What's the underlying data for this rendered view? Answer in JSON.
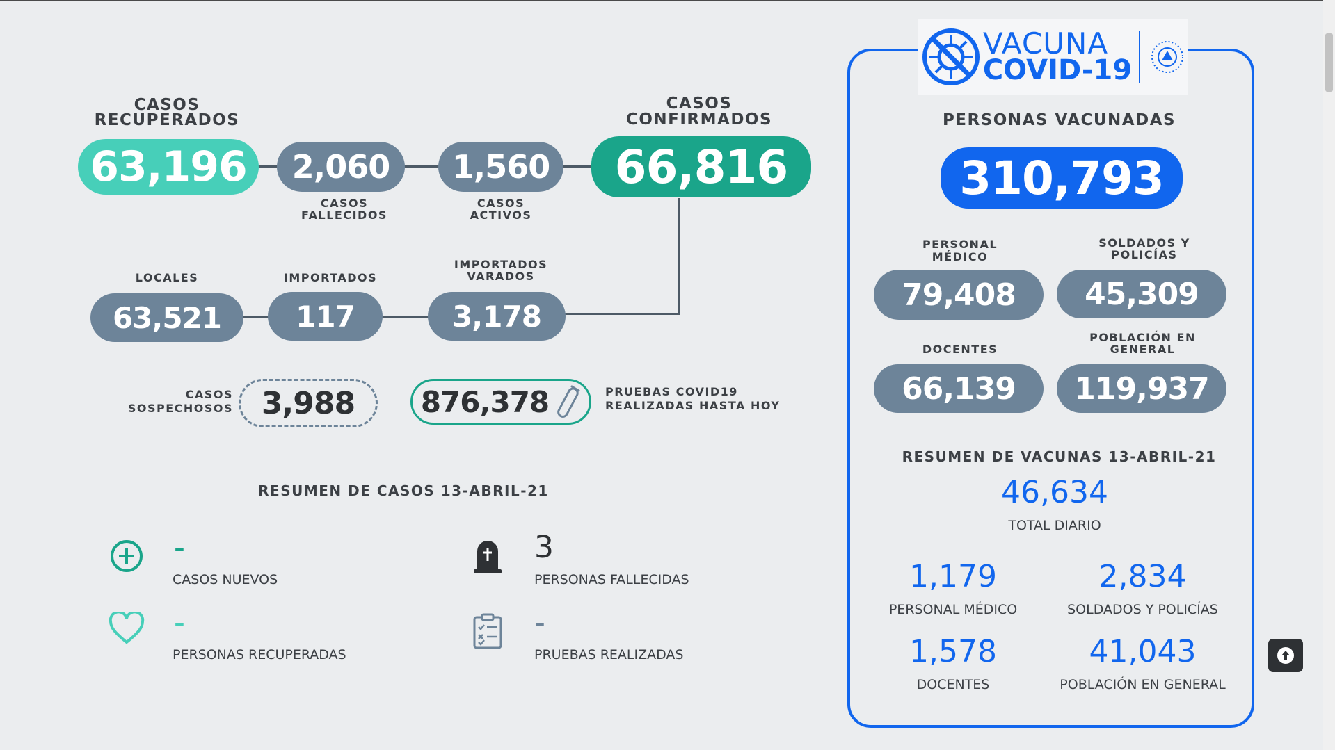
{
  "cases": {
    "recuperados": {
      "label": "CASOS RECUPERADOS",
      "value": "63,196"
    },
    "fallecidos": {
      "label": "CASOS FALLECIDOS",
      "value": "2,060"
    },
    "activos": {
      "label": "CASOS ACTIVOS",
      "value": "1,560"
    },
    "confirmados": {
      "label": "CASOS CONFIRMADOS",
      "value": "66,816"
    },
    "locales": {
      "label": "LOCALES",
      "value": "63,521"
    },
    "importados": {
      "label": "IMPORTADOS",
      "value": "117"
    },
    "varados": {
      "label": "IMPORTADOS VARADOS",
      "value": "3,178"
    },
    "sospechosos": {
      "label": "CASOS SOSPECHOSOS",
      "value": "3,988"
    },
    "pruebas": {
      "label": "PRUEBAS COVID19 REALIZADAS HASTA HOY",
      "value": "876,378"
    }
  },
  "resumen_casos": {
    "title": "RESUMEN DE CASOS 13-ABRIL-21",
    "nuevos": {
      "value": "-",
      "label": "CASOS NUEVOS"
    },
    "fallecidas": {
      "value": "3",
      "label": "PERSONAS FALLECIDAS"
    },
    "recuperadas": {
      "value": "-",
      "label": "PERSONAS RECUPERADAS"
    },
    "pruebas": {
      "value": "-",
      "label": "PRUEBAS REALIZADAS"
    }
  },
  "vacuna": {
    "logo_line1": "VACUNA",
    "logo_line2": "COVID-19",
    "title": "PERSONAS VACUNADAS",
    "total": "310,793",
    "medico": {
      "label": "PERSONAL MÉDICO",
      "value": "79,408"
    },
    "soldados": {
      "label": "SOLDADOS Y POLICÍAS",
      "value": "45,309"
    },
    "docentes": {
      "label": "DOCENTES",
      "value": "66,139"
    },
    "poblacion": {
      "label": "POBLACIÓN EN GENERAL",
      "value": "119,937"
    },
    "resumen_title": "RESUMEN DE VACUNAS 13-ABRIL-21",
    "diario": {
      "value": "46,634",
      "label": "TOTAL DIARIO"
    },
    "d_medico": {
      "value": "1,179",
      "label": "PERSONAL MÉDICO"
    },
    "d_soldados": {
      "value": "2,834",
      "label": "SOLDADOS Y POLICÍAS"
    },
    "d_docentes": {
      "value": "1,578",
      "label": "DOCENTES"
    },
    "d_poblacion": {
      "value": "41,043",
      "label": "POBLACIÓN EN GENERAL"
    }
  },
  "colors": {
    "teal_light": "#47cfb9",
    "teal_dark": "#1aa58a",
    "slate": "#6d8499",
    "blue": "#1166ee"
  },
  "icons": [
    "plus-circle-icon",
    "heart-icon",
    "tombstone-icon",
    "clipboard-icon",
    "test-tube-icon",
    "virus-icon",
    "seal-icon",
    "arrow-up-icon"
  ]
}
